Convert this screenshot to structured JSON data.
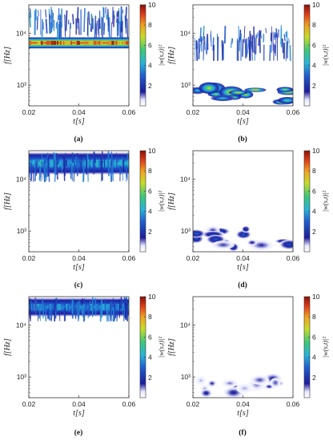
{
  "figure": {
    "captions": [
      "(a)",
      "(b)",
      "(c)",
      "(d)",
      "(e)",
      "(f)"
    ],
    "colorbar_label": "|w(s,t)|²"
  },
  "chart_data": [
    {
      "id": "a",
      "type": "heatmap",
      "xlabel": "t[s]",
      "ylabel": "f[Hz]",
      "xlim": [
        0.02,
        0.06
      ],
      "ylim": [
        400,
        35000
      ],
      "yscale": "log",
      "xticks": [
        "0.02",
        "0.04",
        "0.06"
      ],
      "yticks": [
        {
          "value": 1000,
          "label": "10³"
        },
        {
          "value": 10000,
          "label": "10⁴"
        }
      ],
      "colorbar": {
        "min": 0,
        "max": 10,
        "ticks": [
          "2",
          "4",
          "6",
          "8",
          "10"
        ],
        "colormap": "jet"
      },
      "features": [
        {
          "kind": "band",
          "f_center": 6500,
          "f_spread_oct": 0.35,
          "intensity": 9.5,
          "t_from": 0.02,
          "t_to": 0.06
        },
        {
          "kind": "streaks",
          "f_from": 8000,
          "f_to": 32000,
          "intensity": 3
        }
      ]
    },
    {
      "id": "b",
      "type": "heatmap",
      "xlabel": "t[s]",
      "ylabel": "f[Hz]",
      "xlim": [
        0.02,
        0.06
      ],
      "ylim": [
        400,
        35000
      ],
      "yscale": "log",
      "xticks": [
        "0.02",
        "0.04",
        "0.06"
      ],
      "yticks": [
        {
          "value": 1000,
          "label": "10³"
        },
        {
          "value": 10000,
          "label": "10⁴"
        }
      ],
      "colorbar": {
        "min": 0,
        "max": 10,
        "ticks": [
          "2",
          "4",
          "6",
          "8",
          "10"
        ],
        "colormap": "jet"
      },
      "features": [
        {
          "kind": "streaks",
          "f_from": 3000,
          "f_to": 14000,
          "intensity": 3
        },
        {
          "kind": "blobs",
          "f_from": 420,
          "f_to": 900,
          "intensity": 8
        }
      ]
    },
    {
      "id": "c",
      "type": "heatmap",
      "xlabel": "t[s]",
      "ylabel": "f[Hz]",
      "xlim": [
        0.02,
        0.06
      ],
      "ylim": [
        400,
        35000
      ],
      "yscale": "log",
      "xticks": [
        "0.02",
        "0.04",
        "0.06"
      ],
      "yticks": [
        {
          "value": 1000,
          "label": "10³"
        },
        {
          "value": 10000,
          "label": "10⁴"
        }
      ],
      "colorbar": {
        "min": 0,
        "max": 10,
        "ticks": [
          "2",
          "4",
          "6",
          "8",
          "10"
        ],
        "colormap": "jet"
      },
      "features": [
        {
          "kind": "band",
          "f_center": 20000,
          "f_spread_oct": 0.7,
          "intensity": 4.5,
          "t_from": 0.02,
          "t_to": 0.06
        },
        {
          "kind": "streaks",
          "f_from": 9000,
          "f_to": 34000,
          "intensity": 3
        }
      ]
    },
    {
      "id": "d",
      "type": "heatmap",
      "xlabel": "t[s]",
      "ylabel": "f[Hz]",
      "xlim": [
        0.02,
        0.06
      ],
      "ylim": [
        400,
        35000
      ],
      "yscale": "log",
      "xticks": [
        "0.02",
        "0.04",
        "0.06"
      ],
      "yticks": [
        {
          "value": 1000,
          "label": "10³"
        },
        {
          "value": 10000,
          "label": "10⁴"
        }
      ],
      "colorbar": {
        "min": 0,
        "max": 10,
        "ticks": [
          "2",
          "4",
          "6",
          "8",
          "10"
        ],
        "colormap": "jet"
      },
      "features": [
        {
          "kind": "blobs",
          "f_from": 430,
          "f_to": 1100,
          "intensity": 2.5
        }
      ]
    },
    {
      "id": "e",
      "type": "heatmap",
      "xlabel": "t[s]",
      "ylabel": "f[Hz]",
      "xlim": [
        0.02,
        0.06
      ],
      "ylim": [
        400,
        35000
      ],
      "yscale": "log",
      "xticks": [
        "0.02",
        "0.04",
        "0.06"
      ],
      "yticks": [
        {
          "value": 1000,
          "label": "10³"
        },
        {
          "value": 10000,
          "label": "10⁴"
        }
      ],
      "colorbar": {
        "min": 0,
        "max": 10,
        "ticks": [
          "2",
          "4",
          "6",
          "8",
          "10"
        ],
        "colormap": "jet"
      },
      "features": [
        {
          "kind": "band",
          "f_center": 22000,
          "f_spread_oct": 0.6,
          "intensity": 4,
          "t_from": 0.02,
          "t_to": 0.06
        },
        {
          "kind": "streaks",
          "f_from": 12000,
          "f_to": 34000,
          "intensity": 3
        }
      ]
    },
    {
      "id": "f",
      "type": "heatmap",
      "xlabel": "t[s]",
      "ylabel": "f[Hz]",
      "xlim": [
        0.02,
        0.06
      ],
      "ylim": [
        400,
        35000
      ],
      "yscale": "log",
      "xticks": [
        "0.02",
        "0.04",
        "0.06"
      ],
      "yticks": [
        {
          "value": 1000,
          "label": "10³"
        },
        {
          "value": 10000,
          "label": "10⁴"
        }
      ],
      "colorbar": {
        "min": 0,
        "max": 10,
        "ticks": [
          "2",
          "4",
          "6",
          "8",
          "10"
        ],
        "colormap": "jet"
      },
      "features": [
        {
          "kind": "blobs",
          "f_from": 480,
          "f_to": 1000,
          "intensity": 1.5
        }
      ]
    }
  ]
}
